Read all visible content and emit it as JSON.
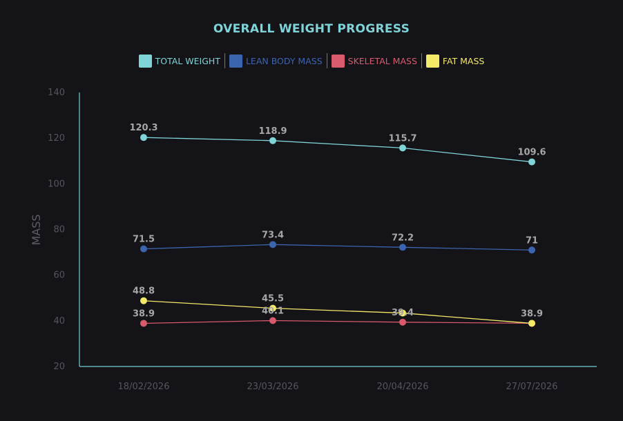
{
  "chart_data": {
    "type": "line",
    "title": "OVERALL WEIGHT PROGRESS",
    "xlabel": "",
    "ylabel": "MASS",
    "categories": [
      "18/02/2026",
      "23/03/2026",
      "20/04/2026",
      "27/07/2026"
    ],
    "ylim": [
      20,
      140
    ],
    "yticks": [
      20,
      40,
      60,
      80,
      100,
      120,
      140
    ],
    "grid": false,
    "legend_position": "top-center",
    "series": [
      {
        "name": "TOTAL WEIGHT",
        "color": "#7fd4d8",
        "values": [
          120.3,
          118.9,
          115.7,
          109.6
        ],
        "labels": [
          "120.3",
          "118.9",
          "115.7",
          "109.6"
        ]
      },
      {
        "name": "LEAN BODY MASS",
        "color": "#3c65b0",
        "values": [
          71.5,
          73.4,
          72.2,
          71
        ],
        "labels": [
          "71.5",
          "73.4",
          "72.2",
          "71"
        ]
      },
      {
        "name": "SKELETAL MASS",
        "color": "#d95a6c",
        "values": [
          38.9,
          40.1,
          39.4,
          38.9
        ],
        "labels": [
          "38.9",
          "40.1",
          "39.4",
          ""
        ]
      },
      {
        "name": "FAT MASS",
        "color": "#f5e96a",
        "values": [
          48.8,
          45.5,
          43.4,
          38.9
        ],
        "labels": [
          "48.8",
          "45.5",
          "",
          "38.9"
        ]
      }
    ]
  },
  "colors": {
    "background": "#141317",
    "title": "#7fd4d8",
    "axis_line": "#6fd0d4"
  }
}
